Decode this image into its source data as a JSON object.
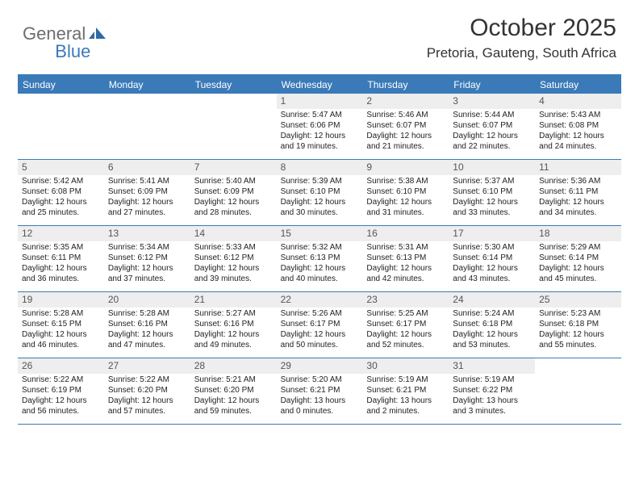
{
  "logo": {
    "part1": "General",
    "part2": "Blue"
  },
  "title": "October 2025",
  "location": "Pretoria, Gauteng, South Africa",
  "colors": {
    "header_bg": "#3a7ab8",
    "header_text": "#ffffff",
    "daynum_bg": "#eeeeee",
    "border": "#3a7ab8",
    "body_bg": "#ffffff",
    "logo_gray": "#6e6e6e",
    "logo_blue": "#3a7ab8"
  },
  "dow": [
    "Sunday",
    "Monday",
    "Tuesday",
    "Wednesday",
    "Thursday",
    "Friday",
    "Saturday"
  ],
  "weeks": [
    [
      null,
      null,
      null,
      {
        "num": "1",
        "sunrise": "Sunrise: 5:47 AM",
        "sunset": "Sunset: 6:06 PM",
        "day1": "Daylight: 12 hours",
        "day2": "and 19 minutes."
      },
      {
        "num": "2",
        "sunrise": "Sunrise: 5:46 AM",
        "sunset": "Sunset: 6:07 PM",
        "day1": "Daylight: 12 hours",
        "day2": "and 21 minutes."
      },
      {
        "num": "3",
        "sunrise": "Sunrise: 5:44 AM",
        "sunset": "Sunset: 6:07 PM",
        "day1": "Daylight: 12 hours",
        "day2": "and 22 minutes."
      },
      {
        "num": "4",
        "sunrise": "Sunrise: 5:43 AM",
        "sunset": "Sunset: 6:08 PM",
        "day1": "Daylight: 12 hours",
        "day2": "and 24 minutes."
      }
    ],
    [
      {
        "num": "5",
        "sunrise": "Sunrise: 5:42 AM",
        "sunset": "Sunset: 6:08 PM",
        "day1": "Daylight: 12 hours",
        "day2": "and 25 minutes."
      },
      {
        "num": "6",
        "sunrise": "Sunrise: 5:41 AM",
        "sunset": "Sunset: 6:09 PM",
        "day1": "Daylight: 12 hours",
        "day2": "and 27 minutes."
      },
      {
        "num": "7",
        "sunrise": "Sunrise: 5:40 AM",
        "sunset": "Sunset: 6:09 PM",
        "day1": "Daylight: 12 hours",
        "day2": "and 28 minutes."
      },
      {
        "num": "8",
        "sunrise": "Sunrise: 5:39 AM",
        "sunset": "Sunset: 6:10 PM",
        "day1": "Daylight: 12 hours",
        "day2": "and 30 minutes."
      },
      {
        "num": "9",
        "sunrise": "Sunrise: 5:38 AM",
        "sunset": "Sunset: 6:10 PM",
        "day1": "Daylight: 12 hours",
        "day2": "and 31 minutes."
      },
      {
        "num": "10",
        "sunrise": "Sunrise: 5:37 AM",
        "sunset": "Sunset: 6:10 PM",
        "day1": "Daylight: 12 hours",
        "day2": "and 33 minutes."
      },
      {
        "num": "11",
        "sunrise": "Sunrise: 5:36 AM",
        "sunset": "Sunset: 6:11 PM",
        "day1": "Daylight: 12 hours",
        "day2": "and 34 minutes."
      }
    ],
    [
      {
        "num": "12",
        "sunrise": "Sunrise: 5:35 AM",
        "sunset": "Sunset: 6:11 PM",
        "day1": "Daylight: 12 hours",
        "day2": "and 36 minutes."
      },
      {
        "num": "13",
        "sunrise": "Sunrise: 5:34 AM",
        "sunset": "Sunset: 6:12 PM",
        "day1": "Daylight: 12 hours",
        "day2": "and 37 minutes."
      },
      {
        "num": "14",
        "sunrise": "Sunrise: 5:33 AM",
        "sunset": "Sunset: 6:12 PM",
        "day1": "Daylight: 12 hours",
        "day2": "and 39 minutes."
      },
      {
        "num": "15",
        "sunrise": "Sunrise: 5:32 AM",
        "sunset": "Sunset: 6:13 PM",
        "day1": "Daylight: 12 hours",
        "day2": "and 40 minutes."
      },
      {
        "num": "16",
        "sunrise": "Sunrise: 5:31 AM",
        "sunset": "Sunset: 6:13 PM",
        "day1": "Daylight: 12 hours",
        "day2": "and 42 minutes."
      },
      {
        "num": "17",
        "sunrise": "Sunrise: 5:30 AM",
        "sunset": "Sunset: 6:14 PM",
        "day1": "Daylight: 12 hours",
        "day2": "and 43 minutes."
      },
      {
        "num": "18",
        "sunrise": "Sunrise: 5:29 AM",
        "sunset": "Sunset: 6:14 PM",
        "day1": "Daylight: 12 hours",
        "day2": "and 45 minutes."
      }
    ],
    [
      {
        "num": "19",
        "sunrise": "Sunrise: 5:28 AM",
        "sunset": "Sunset: 6:15 PM",
        "day1": "Daylight: 12 hours",
        "day2": "and 46 minutes."
      },
      {
        "num": "20",
        "sunrise": "Sunrise: 5:28 AM",
        "sunset": "Sunset: 6:16 PM",
        "day1": "Daylight: 12 hours",
        "day2": "and 47 minutes."
      },
      {
        "num": "21",
        "sunrise": "Sunrise: 5:27 AM",
        "sunset": "Sunset: 6:16 PM",
        "day1": "Daylight: 12 hours",
        "day2": "and 49 minutes."
      },
      {
        "num": "22",
        "sunrise": "Sunrise: 5:26 AM",
        "sunset": "Sunset: 6:17 PM",
        "day1": "Daylight: 12 hours",
        "day2": "and 50 minutes."
      },
      {
        "num": "23",
        "sunrise": "Sunrise: 5:25 AM",
        "sunset": "Sunset: 6:17 PM",
        "day1": "Daylight: 12 hours",
        "day2": "and 52 minutes."
      },
      {
        "num": "24",
        "sunrise": "Sunrise: 5:24 AM",
        "sunset": "Sunset: 6:18 PM",
        "day1": "Daylight: 12 hours",
        "day2": "and 53 minutes."
      },
      {
        "num": "25",
        "sunrise": "Sunrise: 5:23 AM",
        "sunset": "Sunset: 6:18 PM",
        "day1": "Daylight: 12 hours",
        "day2": "and 55 minutes."
      }
    ],
    [
      {
        "num": "26",
        "sunrise": "Sunrise: 5:22 AM",
        "sunset": "Sunset: 6:19 PM",
        "day1": "Daylight: 12 hours",
        "day2": "and 56 minutes."
      },
      {
        "num": "27",
        "sunrise": "Sunrise: 5:22 AM",
        "sunset": "Sunset: 6:20 PM",
        "day1": "Daylight: 12 hours",
        "day2": "and 57 minutes."
      },
      {
        "num": "28",
        "sunrise": "Sunrise: 5:21 AM",
        "sunset": "Sunset: 6:20 PM",
        "day1": "Daylight: 12 hours",
        "day2": "and 59 minutes."
      },
      {
        "num": "29",
        "sunrise": "Sunrise: 5:20 AM",
        "sunset": "Sunset: 6:21 PM",
        "day1": "Daylight: 13 hours",
        "day2": "and 0 minutes."
      },
      {
        "num": "30",
        "sunrise": "Sunrise: 5:19 AM",
        "sunset": "Sunset: 6:21 PM",
        "day1": "Daylight: 13 hours",
        "day2": "and 2 minutes."
      },
      {
        "num": "31",
        "sunrise": "Sunrise: 5:19 AM",
        "sunset": "Sunset: 6:22 PM",
        "day1": "Daylight: 13 hours",
        "day2": "and 3 minutes."
      },
      null
    ]
  ]
}
